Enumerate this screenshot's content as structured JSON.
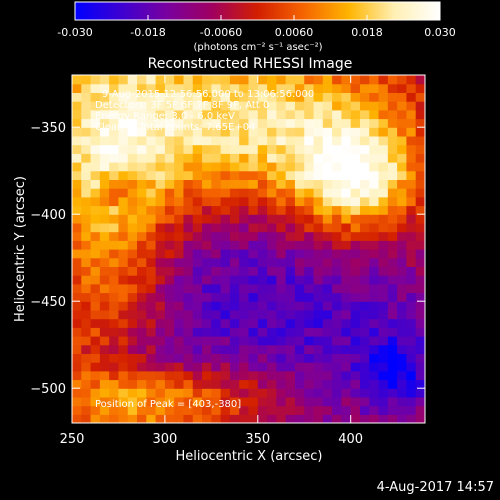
{
  "chart_data": {
    "type": "heatmap",
    "title": "Reconstructed RHESSI Image",
    "xlabel": "Heliocentric X (arcsec)",
    "ylabel": "Heliocentric Y (arcsec)",
    "xlim": [
      250,
      440
    ],
    "ylim": [
      -520,
      -320
    ],
    "x_ticks": [
      250,
      300,
      350,
      400
    ],
    "y_ticks": [
      -350,
      -400,
      -450,
      -500
    ],
    "colorbar": {
      "min": -0.03,
      "max": 0.03,
      "ticks": [
        "-0.030",
        "-0.018",
        "-0.0060",
        "0.0060",
        "0.018",
        "0.030"
      ],
      "unit_label": "(photons cm⁻² s⁻¹ asec⁻²)",
      "colors": [
        "#0000ff",
        "#3c00d2",
        "#7800a0",
        "#a00060",
        "#d21e00",
        "#f56400",
        "#ffb400",
        "#fff0b4",
        "#ffffff"
      ]
    },
    "info_lines": [
      "9-Aug-2015 12:56:56.000 to 13:06:56.000",
      "Detectors: 3F 5F 6F 7F 8F 9F, Att 0",
      "Energy Range: 3.0 - 6.0 keV",
      "Clean     Total counts: 7.65E+04"
    ],
    "peak_label": "Position of Peak = [403,-380]",
    "peak_position": [
      403,
      -380
    ]
  },
  "footer": {
    "date": "4-Aug-2017 14:57"
  }
}
